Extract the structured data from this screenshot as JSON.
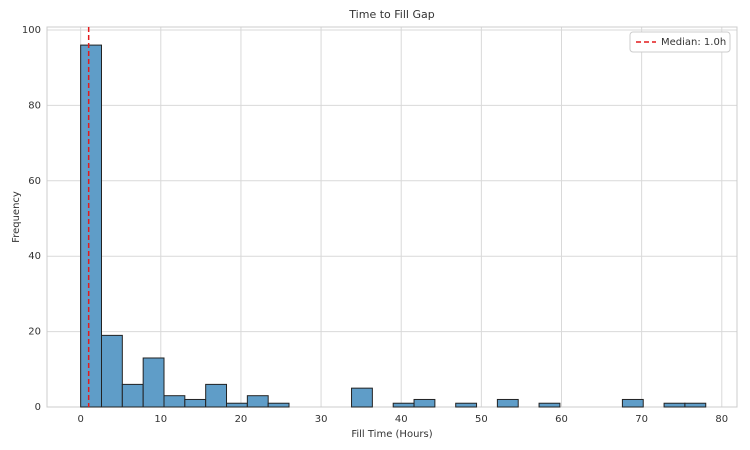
{
  "chart_data": {
    "type": "histogram",
    "title": "Time to Fill Gap",
    "xlabel": "Fill Time (Hours)",
    "ylabel": "Frequency",
    "bins": [
      0,
      2.6,
      5.2,
      7.8,
      10.4,
      13,
      15.6,
      18.2,
      20.8,
      23.4,
      26,
      28.6,
      31.2,
      33.8,
      36.4,
      39,
      41.6,
      44.2,
      46.8,
      49.4,
      52,
      54.6,
      57.2,
      59.8,
      62.4,
      65,
      67.6,
      70.2,
      72.8,
      75.4,
      78
    ],
    "values": [
      96,
      19,
      6,
      13,
      3,
      2,
      6,
      1,
      3,
      1,
      0,
      0,
      0,
      5,
      0,
      1,
      2,
      0,
      1,
      0,
      2,
      0,
      1,
      0,
      0,
      0,
      2,
      0,
      1,
      1
    ],
    "color": "#5f9dc8",
    "edgecolor": "#222222",
    "xlim": [
      -4.2,
      81.9
    ],
    "ylim": [
      0,
      100.8
    ],
    "xticks": [
      0,
      10,
      20,
      30,
      40,
      50,
      60,
      70,
      80
    ],
    "yticks": [
      0,
      20,
      40,
      60,
      80,
      100
    ],
    "grid": true,
    "legend": "upper right",
    "reference_line": {
      "value": 1.0,
      "label": "Median: 1.0h",
      "color": "#e41a1c"
    }
  }
}
